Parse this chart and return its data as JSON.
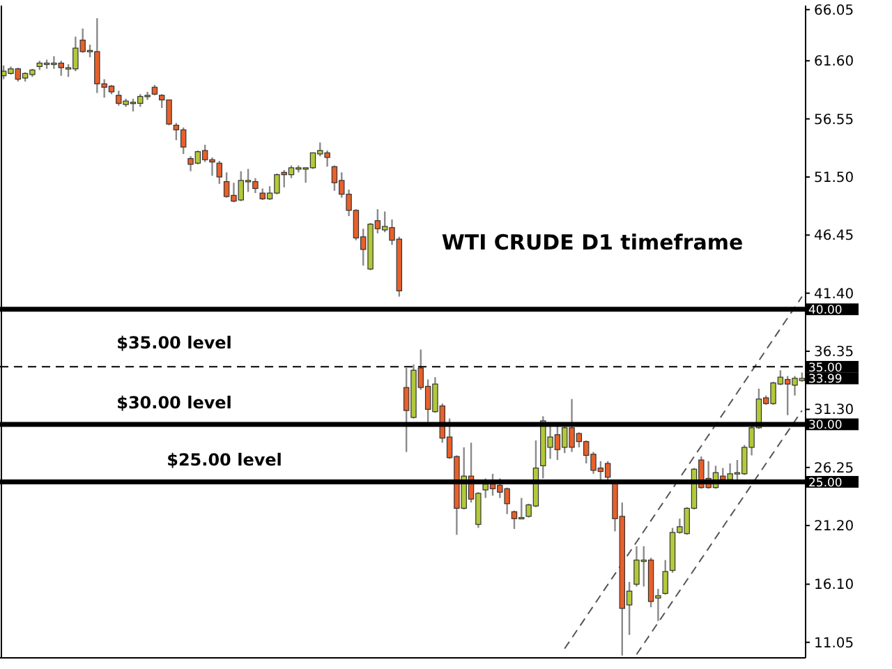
{
  "chart_data": {
    "type": "candlestick",
    "title": "WTI CRUDE D1 timeframe",
    "categories": [
      null,
      null,
      null,
      null,
      null,
      null,
      null,
      null,
      null,
      null,
      null,
      null,
      null,
      null,
      null,
      null,
      null,
      null,
      null,
      null,
      null,
      null,
      null,
      null,
      null,
      null,
      null,
      null,
      null,
      null,
      null,
      null,
      null,
      null,
      null,
      null,
      null,
      null,
      null,
      null,
      null,
      null,
      null,
      null,
      null,
      null,
      null,
      null,
      null,
      null,
      null,
      null,
      null,
      null,
      null,
      null,
      null,
      null,
      null,
      null,
      null,
      null,
      null,
      null,
      null,
      null,
      null,
      null,
      null,
      null,
      null,
      null,
      null,
      null,
      null,
      null,
      null,
      null,
      null,
      null,
      null,
      null,
      null,
      null,
      null,
      null,
      null,
      null,
      null,
      null,
      null,
      null,
      null,
      null,
      null,
      null,
      null,
      null,
      null,
      null,
      null,
      null,
      null,
      null,
      null,
      null,
      null,
      null,
      null,
      null,
      null,
      null
    ],
    "ohlc": [
      [
        60.3,
        61.2,
        60.0,
        60.7
      ],
      [
        60.5,
        61.1,
        60.4,
        60.9
      ],
      [
        60.9,
        61.0,
        59.8,
        60.0
      ],
      [
        60.1,
        60.6,
        59.8,
        60.5
      ],
      [
        60.4,
        60.9,
        60.2,
        60.8
      ],
      [
        61.1,
        61.6,
        60.8,
        61.4
      ],
      [
        61.3,
        61.7,
        60.9,
        61.4
      ],
      [
        61.4,
        62.0,
        60.9,
        61.4
      ],
      [
        61.4,
        61.6,
        60.3,
        61.0
      ],
      [
        61.0,
        61.3,
        60.2,
        61.0
      ],
      [
        60.9,
        63.7,
        60.7,
        62.7
      ],
      [
        63.4,
        64.4,
        62.3,
        62.4
      ],
      [
        62.5,
        63.0,
        61.9,
        62.5
      ],
      [
        62.4,
        65.3,
        58.8,
        59.6
      ],
      [
        59.6,
        60.0,
        58.4,
        59.3
      ],
      [
        59.4,
        59.5,
        58.7,
        58.9
      ],
      [
        58.6,
        59.0,
        57.7,
        57.9
      ],
      [
        57.8,
        58.3,
        57.6,
        58.1
      ],
      [
        58.0,
        58.3,
        57.2,
        58.0
      ],
      [
        57.9,
        58.7,
        57.6,
        58.5
      ],
      [
        58.5,
        58.9,
        58.2,
        58.6
      ],
      [
        59.3,
        59.5,
        58.6,
        58.7
      ],
      [
        58.6,
        58.7,
        57.5,
        58.2
      ],
      [
        58.2,
        58.2,
        56.0,
        56.1
      ],
      [
        56.0,
        56.2,
        54.7,
        55.6
      ],
      [
        55.6,
        55.8,
        53.5,
        54.1
      ],
      [
        53.1,
        53.3,
        52.0,
        52.6
      ],
      [
        52.7,
        53.8,
        52.6,
        53.7
      ],
      [
        53.8,
        54.3,
        52.8,
        53.0
      ],
      [
        53.0,
        53.2,
        51.6,
        52.8
      ],
      [
        52.7,
        52.9,
        50.9,
        51.5
      ],
      [
        51.1,
        51.9,
        49.7,
        49.8
      ],
      [
        49.9,
        51.0,
        49.3,
        49.4
      ],
      [
        49.5,
        52.0,
        49.4,
        51.2
      ],
      [
        51.2,
        52.2,
        50.2,
        51.2
      ],
      [
        51.1,
        51.4,
        50.1,
        50.5
      ],
      [
        50.1,
        50.5,
        49.5,
        49.6
      ],
      [
        49.6,
        50.7,
        49.5,
        50.1
      ],
      [
        50.1,
        51.8,
        50.0,
        51.7
      ],
      [
        51.9,
        52.1,
        50.6,
        51.7
      ],
      [
        51.7,
        52.5,
        51.4,
        52.3
      ],
      [
        52.3,
        52.5,
        51.9,
        52.3
      ],
      [
        52.3,
        52.3,
        51.0,
        52.3
      ],
      [
        52.3,
        53.6,
        52.2,
        53.6
      ],
      [
        53.5,
        54.5,
        53.3,
        53.8
      ],
      [
        53.6,
        53.8,
        52.4,
        53.2
      ],
      [
        52.4,
        52.5,
        50.3,
        51.0
      ],
      [
        51.2,
        51.9,
        49.7,
        50.0
      ],
      [
        50.0,
        50.4,
        48.1,
        48.6
      ],
      [
        48.6,
        48.7,
        46.0,
        46.2
      ],
      [
        46.3,
        47.0,
        43.8,
        45.2
      ],
      [
        43.5,
        47.5,
        43.4,
        47.4
      ],
      [
        47.7,
        48.7,
        46.6,
        47.0
      ],
      [
        46.9,
        48.5,
        46.7,
        47.2
      ],
      [
        47.1,
        47.8,
        45.6,
        46.0
      ],
      [
        46.1,
        46.3,
        41.1,
        41.6
      ],
      [
        33.2,
        34.9,
        27.6,
        31.2
      ],
      [
        30.6,
        35.2,
        30.5,
        34.7
      ],
      [
        34.9,
        36.5,
        33.0,
        33.2
      ],
      [
        33.3,
        33.9,
        30.2,
        31.3
      ],
      [
        31.1,
        34.1,
        31.0,
        33.5
      ],
      [
        31.6,
        31.8,
        28.4,
        28.8
      ],
      [
        28.9,
        30.5,
        27.0,
        27.1
      ],
      [
        27.2,
        27.3,
        20.4,
        22.7
      ],
      [
        22.7,
        28.0,
        22.6,
        25.5
      ],
      [
        25.5,
        28.4,
        23.2,
        23.5
      ],
      [
        21.3,
        24.1,
        21.0,
        24.0
      ],
      [
        24.3,
        25.3,
        23.6,
        24.8
      ],
      [
        24.8,
        25.7,
        23.8,
        24.4
      ],
      [
        24.7,
        25.3,
        23.6,
        24.1
      ],
      [
        24.4,
        24.5,
        22.2,
        23.1
      ],
      [
        22.4,
        22.5,
        20.9,
        21.8
      ],
      [
        21.9,
        23.6,
        21.8,
        21.9
      ],
      [
        22.0,
        23.1,
        21.9,
        23.0
      ],
      [
        22.9,
        28.6,
        22.8,
        26.2
      ],
      [
        26.4,
        30.7,
        25.3,
        30.3
      ],
      [
        28.0,
        30.1,
        27.0,
        28.9
      ],
      [
        29.1,
        30.1,
        26.9,
        27.8
      ],
      [
        28.0,
        30.0,
        27.5,
        29.7
      ],
      [
        29.7,
        32.2,
        27.6,
        28.0
      ],
      [
        29.2,
        29.3,
        28.0,
        28.5
      ],
      [
        28.5,
        28.6,
        26.6,
        27.3
      ],
      [
        27.4,
        27.6,
        25.7,
        26.0
      ],
      [
        26.2,
        26.8,
        25.2,
        25.9
      ],
      [
        26.6,
        26.8,
        25.2,
        25.4
      ],
      [
        25.0,
        25.2,
        20.7,
        21.8
      ],
      [
        22.0,
        23.2,
        9.9,
        14.0
      ],
      [
        14.3,
        16.3,
        11.7,
        15.5
      ],
      [
        16.1,
        19.4,
        15.9,
        18.2
      ],
      [
        18.2,
        19.4,
        15.9,
        18.2
      ],
      [
        18.2,
        18.4,
        14.1,
        14.6
      ],
      [
        14.9,
        15.7,
        12.9,
        15.1
      ],
      [
        15.3,
        18.2,
        15.2,
        17.2
      ],
      [
        17.3,
        21.0,
        17.1,
        20.6
      ],
      [
        20.6,
        21.8,
        20.5,
        21.1
      ],
      [
        20.5,
        22.8,
        20.4,
        22.7
      ],
      [
        22.7,
        26.2,
        22.6,
        26.1
      ],
      [
        26.9,
        27.2,
        24.4,
        24.5
      ],
      [
        25.3,
        26.8,
        24.4,
        24.5
      ],
      [
        24.5,
        26.4,
        24.4,
        25.8
      ],
      [
        25.5,
        26.2,
        25.0,
        25.2
      ],
      [
        25.2,
        26.6,
        25.1,
        25.7
      ],
      [
        25.8,
        26.9,
        25.2,
        25.8
      ],
      [
        25.7,
        28.2,
        25.6,
        28.0
      ],
      [
        28.0,
        29.9,
        27.3,
        29.7
      ],
      [
        29.7,
        33.1,
        29.6,
        32.2
      ],
      [
        32.3,
        32.5,
        31.7,
        31.8
      ],
      [
        31.8,
        33.7,
        31.7,
        33.6
      ],
      [
        33.5,
        34.7,
        33.4,
        34.1
      ],
      [
        33.9,
        34.2,
        30.8,
        33.5
      ],
      [
        33.4,
        34.2,
        32.5,
        34.0
      ],
      [
        33.8,
        34.5,
        33.7,
        33.99
      ]
    ],
    "colors": [
      "#b2c93a",
      "#b2c93a",
      "#e8602a",
      "#b2c93a",
      "#b2c93a",
      "#b2c93a",
      "#b2c93a",
      "#b2c93a",
      "#e8602a",
      "#b2c93a",
      "#b2c93a",
      "#e8602a",
      "#b2c93a",
      "#e8602a",
      "#e8602a",
      "#e8602a",
      "#e8602a",
      "#b2c93a",
      "#b2c93a",
      "#b2c93a",
      "#b2c93a",
      "#e8602a",
      "#e8602a",
      "#e8602a",
      "#e8602a",
      "#e8602a",
      "#e8602a",
      "#b2c93a",
      "#e8602a",
      "#e8602a",
      "#e8602a",
      "#e8602a",
      "#e8602a",
      "#b2c93a",
      "#b2c93a",
      "#e8602a",
      "#e8602a",
      "#b2c93a",
      "#b2c93a",
      "#e8602a",
      "#b2c93a",
      "#b2c93a",
      "#b2c93a",
      "#b2c93a",
      "#b2c93a",
      "#e8602a",
      "#e8602a",
      "#e8602a",
      "#e8602a",
      "#e8602a",
      "#e8602a",
      "#b2c93a",
      "#e8602a",
      "#b2c93a",
      "#e8602a",
      "#e8602a",
      "#e8602a",
      "#b2c93a",
      "#e8602a",
      "#e8602a",
      "#b2c93a",
      "#e8602a",
      "#e8602a",
      "#e8602a",
      "#b2c93a",
      "#e8602a",
      "#b2c93a",
      "#b2c93a",
      "#e8602a",
      "#e8602a",
      "#e8602a",
      "#e8602a",
      "#b2c93a",
      "#b2c93a",
      "#b2c93a",
      "#b2c93a",
      "#b2c93a",
      "#e8602a",
      "#b2c93a",
      "#e8602a",
      "#e8602a",
      "#e8602a",
      "#e8602a",
      "#e8602a",
      "#e8602a",
      "#e8602a",
      "#e8602a",
      "#b2c93a",
      "#b2c93a",
      "#b2c93a",
      "#e8602a",
      "#b2c93a",
      "#b2c93a",
      "#b2c93a",
      "#b2c93a",
      "#b2c93a",
      "#b2c93a",
      "#e8602a",
      "#e8602a",
      "#b2c93a",
      "#e8602a",
      "#b2c93a",
      "#b2c93a",
      "#b2c93a",
      "#b2c93a",
      "#b2c93a",
      "#e8602a",
      "#b2c93a",
      "#b2c93a",
      "#e8602a",
      "#b2c93a",
      "#b2c93a"
    ],
    "series": [
      {
        "type": "line",
        "color": "#555555",
        "line_style": "dashed",
        "values": [
          null,
          null,
          null,
          null,
          null,
          null,
          null,
          null,
          null,
          null,
          null,
          null,
          null,
          null,
          null,
          null,
          null,
          null,
          null,
          null,
          null,
          null,
          null,
          null,
          null,
          null,
          null,
          null,
          null,
          null,
          null,
          null,
          null,
          null,
          null,
          null,
          null,
          null,
          null,
          null,
          null,
          null,
          null,
          null,
          null,
          null,
          null,
          null,
          null,
          null,
          null,
          null,
          null,
          null,
          null,
          null,
          null,
          null,
          null,
          null,
          null,
          null,
          null,
          null,
          null,
          null,
          null,
          null,
          null,
          null,
          null,
          null,
          null,
          null,
          null,
          null,
          null,
          null,
          10.5,
          null,
          null,
          null,
          null,
          null,
          null,
          null,
          null,
          null,
          null,
          null,
          null,
          null,
          null,
          null,
          null,
          null,
          null,
          null,
          null,
          null,
          null,
          null,
          null,
          null,
          null,
          null,
          null,
          null,
          null,
          null,
          null,
          41.1
        ]
      },
      {
        "type": "line",
        "color": "#555555",
        "line_style": "dashed",
        "values": [
          null,
          null,
          null,
          null,
          null,
          null,
          null,
          null,
          null,
          null,
          null,
          null,
          null,
          null,
          null,
          null,
          null,
          null,
          null,
          null,
          null,
          null,
          null,
          null,
          null,
          null,
          null,
          null,
          null,
          null,
          null,
          null,
          null,
          null,
          null,
          null,
          null,
          null,
          null,
          null,
          null,
          null,
          null,
          null,
          null,
          null,
          null,
          null,
          null,
          null,
          null,
          null,
          null,
          null,
          null,
          null,
          null,
          null,
          null,
          null,
          null,
          null,
          null,
          null,
          null,
          null,
          null,
          null,
          null,
          null,
          null,
          null,
          null,
          null,
          null,
          null,
          null,
          null,
          null,
          null,
          null,
          null,
          null,
          null,
          null,
          null,
          null,
          null,
          10.0,
          null,
          null,
          null,
          null,
          null,
          null,
          null,
          null,
          null,
          null,
          null,
          null,
          null,
          null,
          null,
          null,
          null,
          null,
          null,
          null,
          null,
          null,
          31.2
        ]
      }
    ],
    "ylim": [
      9.7,
      66.4
    ],
    "yticks": [
      11.05,
      {
        "value": 16.1,
        "label": "16.10"
      },
      {
        "value": 21.2,
        "label": "21.20"
      },
      26.25,
      {
        "value": 31.3,
        "label": "31.30"
      },
      36.35,
      {
        "value": 41.4,
        "label": "41.40"
      },
      46.45,
      {
        "value": 51.5,
        "label": "51.50"
      },
      56.55,
      {
        "value": 61.6,
        "label": "61.60"
      },
      66.05
    ],
    "tick_labels": "y",
    "grid": false,
    "ref_lines": [
      {
        "axis": "y",
        "value": 40,
        "label": "40.00",
        "line_style": "solid"
      },
      {
        "axis": "y",
        "value": 35,
        "label": "35.00",
        "line_style": "dashed"
      },
      {
        "axis": "y",
        "value": 30,
        "label": "30.00",
        "line_style": "solid"
      },
      {
        "axis": "y",
        "value": 25,
        "label": "25.00",
        "line_style": "solid"
      }
    ],
    "annotations": [
      "$35.00 level",
      "$30.00 level",
      "$25.00 level",
      "33.99"
    ]
  }
}
